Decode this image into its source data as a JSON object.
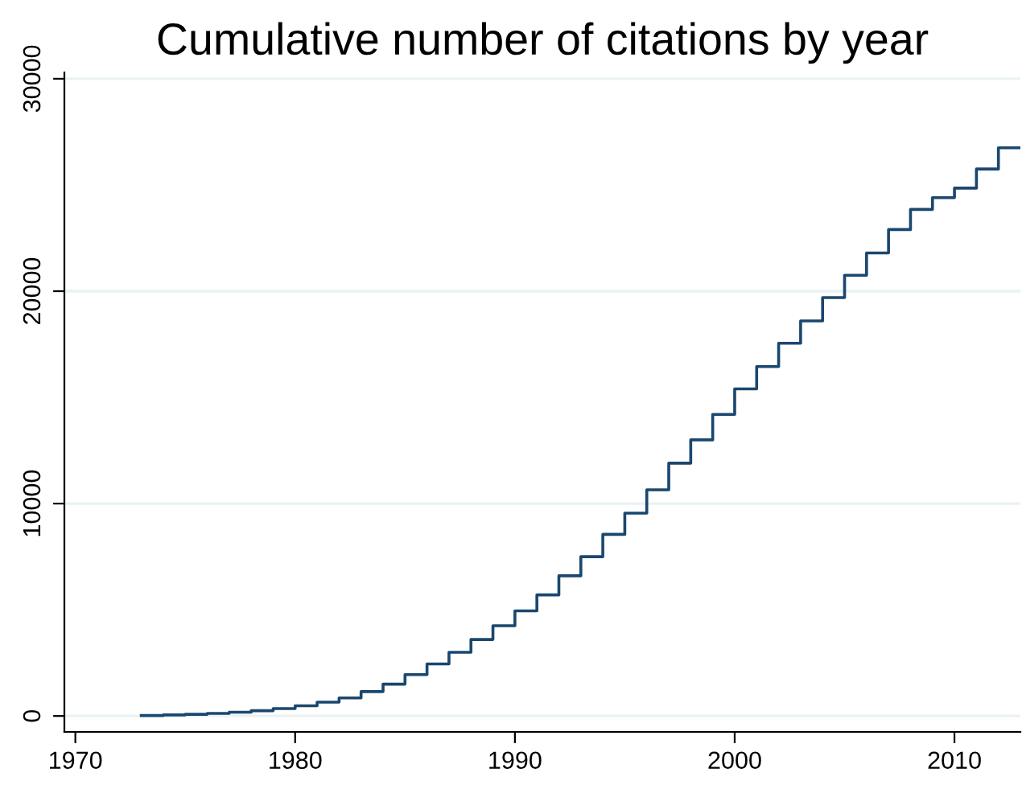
{
  "chart_data": {
    "type": "step",
    "title": "Cumulative number of citations by year",
    "x": [
      1973,
      1974,
      1975,
      1976,
      1977,
      1978,
      1979,
      1980,
      1981,
      1982,
      1983,
      1984,
      1985,
      1986,
      1987,
      1988,
      1989,
      1990,
      1991,
      1992,
      1993,
      1994,
      1995,
      1996,
      1997,
      1998,
      1999,
      2000,
      2001,
      2002,
      2003,
      2004,
      2005,
      2006,
      2007,
      2008,
      2009,
      2010,
      2011,
      2012,
      2013
    ],
    "series": [
      {
        "color": "#1a476f",
        "values": [
          20,
          50,
          80,
          120,
          180,
          250,
          350,
          480,
          650,
          850,
          1150,
          1500,
          1950,
          2450,
          3000,
          3600,
          4250,
          4950,
          5700,
          6600,
          7500,
          8550,
          9550,
          10650,
          11900,
          13000,
          14200,
          15400,
          16450,
          17550,
          18600,
          19700,
          20750,
          21800,
          22900,
          23850,
          24400,
          24850,
          25750,
          26750,
          26750
        ]
      }
    ],
    "xlim": [
      1969.5,
      2013
    ],
    "xticks": [
      1970,
      1980,
      1990,
      2000,
      2010
    ],
    "ylim": [
      -750,
      30300
    ],
    "yticks": [
      0,
      10000,
      20000,
      30000
    ],
    "grid": "y"
  }
}
